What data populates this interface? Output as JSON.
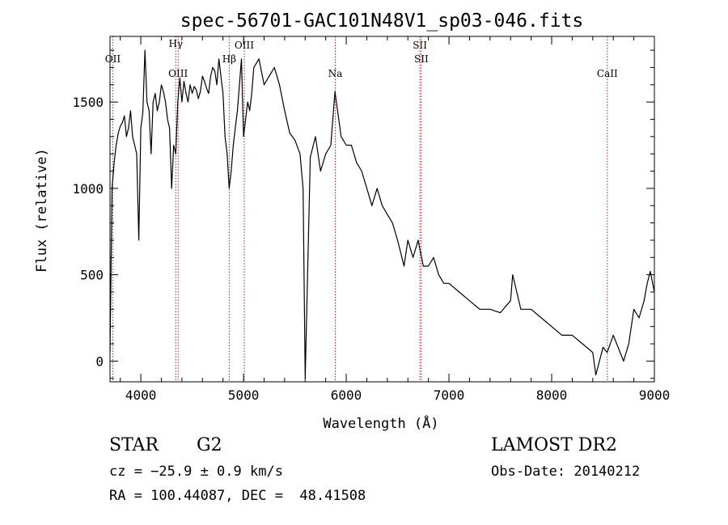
{
  "chart_data": {
    "type": "line",
    "title": "spec-56701-GAC101N48V1_sp03-046.fits",
    "xlabel": "Wavelength (Å)",
    "ylabel": "Flux (relative)",
    "xlim": [
      3700,
      9000
    ],
    "ylim": [
      -120,
      1880
    ],
    "xticks": [
      4000,
      5000,
      6000,
      7000,
      8000,
      9000
    ],
    "yticks": [
      0,
      500,
      1000,
      1500
    ],
    "grid": false,
    "series": [
      {
        "x": [
          3700,
          3720,
          3740,
          3760,
          3780,
          3800,
          3820,
          3840,
          3860,
          3880,
          3900,
          3920,
          3940,
          3960,
          3980,
          4000,
          4020,
          4040,
          4060,
          4080,
          4100,
          4120,
          4140,
          4160,
          4180,
          4200,
          4220,
          4240,
          4260,
          4280,
          4300,
          4320,
          4340,
          4360,
          4380,
          4400,
          4420,
          4440,
          4460,
          4480,
          4500,
          4520,
          4540,
          4560,
          4580,
          4600,
          4620,
          4640,
          4660,
          4680,
          4700,
          4720,
          4740,
          4760,
          4780,
          4800,
          4820,
          4840,
          4860,
          4880,
          4900,
          4920,
          4940,
          4960,
          4980,
          5000,
          5020,
          5040,
          5060,
          5080,
          5100,
          5150,
          5200,
          5250,
          5300,
          5350,
          5400,
          5450,
          5500,
          5550,
          5580,
          5600,
          5650,
          5700,
          5750,
          5800,
          5850,
          5890,
          5950,
          6000,
          6050,
          6100,
          6150,
          6200,
          6250,
          6300,
          6350,
          6400,
          6450,
          6500,
          6563,
          6600,
          6650,
          6700,
          6750,
          6800,
          6850,
          6900,
          6950,
          7000,
          7100,
          7200,
          7300,
          7400,
          7500,
          7600,
          7620,
          7700,
          7800,
          7900,
          8000,
          8100,
          8200,
          8300,
          8400,
          8430,
          8500,
          8540,
          8600,
          8700,
          8750,
          8800,
          8850,
          8900,
          8930,
          8960,
          9000
        ],
        "values": [
          50,
          1000,
          1150,
          1250,
          1320,
          1360,
          1380,
          1420,
          1300,
          1350,
          1450,
          1300,
          1250,
          1200,
          700,
          1350,
          1440,
          1800,
          1500,
          1450,
          1200,
          1500,
          1550,
          1450,
          1500,
          1600,
          1560,
          1500,
          1400,
          1350,
          1000,
          1250,
          1200,
          1500,
          1640,
          1500,
          1620,
          1550,
          1500,
          1600,
          1550,
          1590,
          1570,
          1520,
          1560,
          1650,
          1620,
          1580,
          1550,
          1650,
          1700,
          1680,
          1600,
          1750,
          1650,
          1550,
          1300,
          1200,
          1000,
          1100,
          1250,
          1350,
          1450,
          1600,
          1750,
          1300,
          1400,
          1500,
          1450,
          1550,
          1700,
          1750,
          1600,
          1650,
          1700,
          1600,
          1450,
          1320,
          1280,
          1200,
          1000,
          -100,
          1180,
          1300,
          1100,
          1200,
          1250,
          1560,
          1300,
          1250,
          1250,
          1150,
          1100,
          1000,
          900,
          1000,
          900,
          850,
          800,
          700,
          550,
          700,
          600,
          700,
          550,
          550,
          600,
          500,
          450,
          450,
          400,
          350,
          300,
          300,
          280,
          350,
          500,
          300,
          300,
          250,
          200,
          150,
          150,
          100,
          50,
          -80,
          80,
          50,
          150,
          0,
          100,
          300,
          250,
          350,
          450,
          520,
          400
        ]
      }
    ],
    "lines": [
      {
        "x": 3727,
        "label": "OII"
      },
      {
        "x": 4340,
        "label": "Hγ"
      },
      {
        "x": 4363,
        "label": "OIII"
      },
      {
        "x": 4861,
        "label": "Hβ"
      },
      {
        "x": 5007,
        "label": "OIII"
      },
      {
        "x": 5893,
        "label": "Na"
      },
      {
        "x": 6717,
        "label": "SII"
      },
      {
        "x": 6731,
        "label": "SII"
      },
      {
        "x": 8542,
        "label": "CaII"
      }
    ]
  },
  "info": {
    "object_class": "STAR",
    "subclass": "G2",
    "cz": "cz = −25.9 ± 0.9 km/s",
    "coords": "RA = 100.44087, DEC =  48.41508",
    "survey": "LAMOST DR2",
    "obs_date": "Obs-Date: 20140212"
  }
}
